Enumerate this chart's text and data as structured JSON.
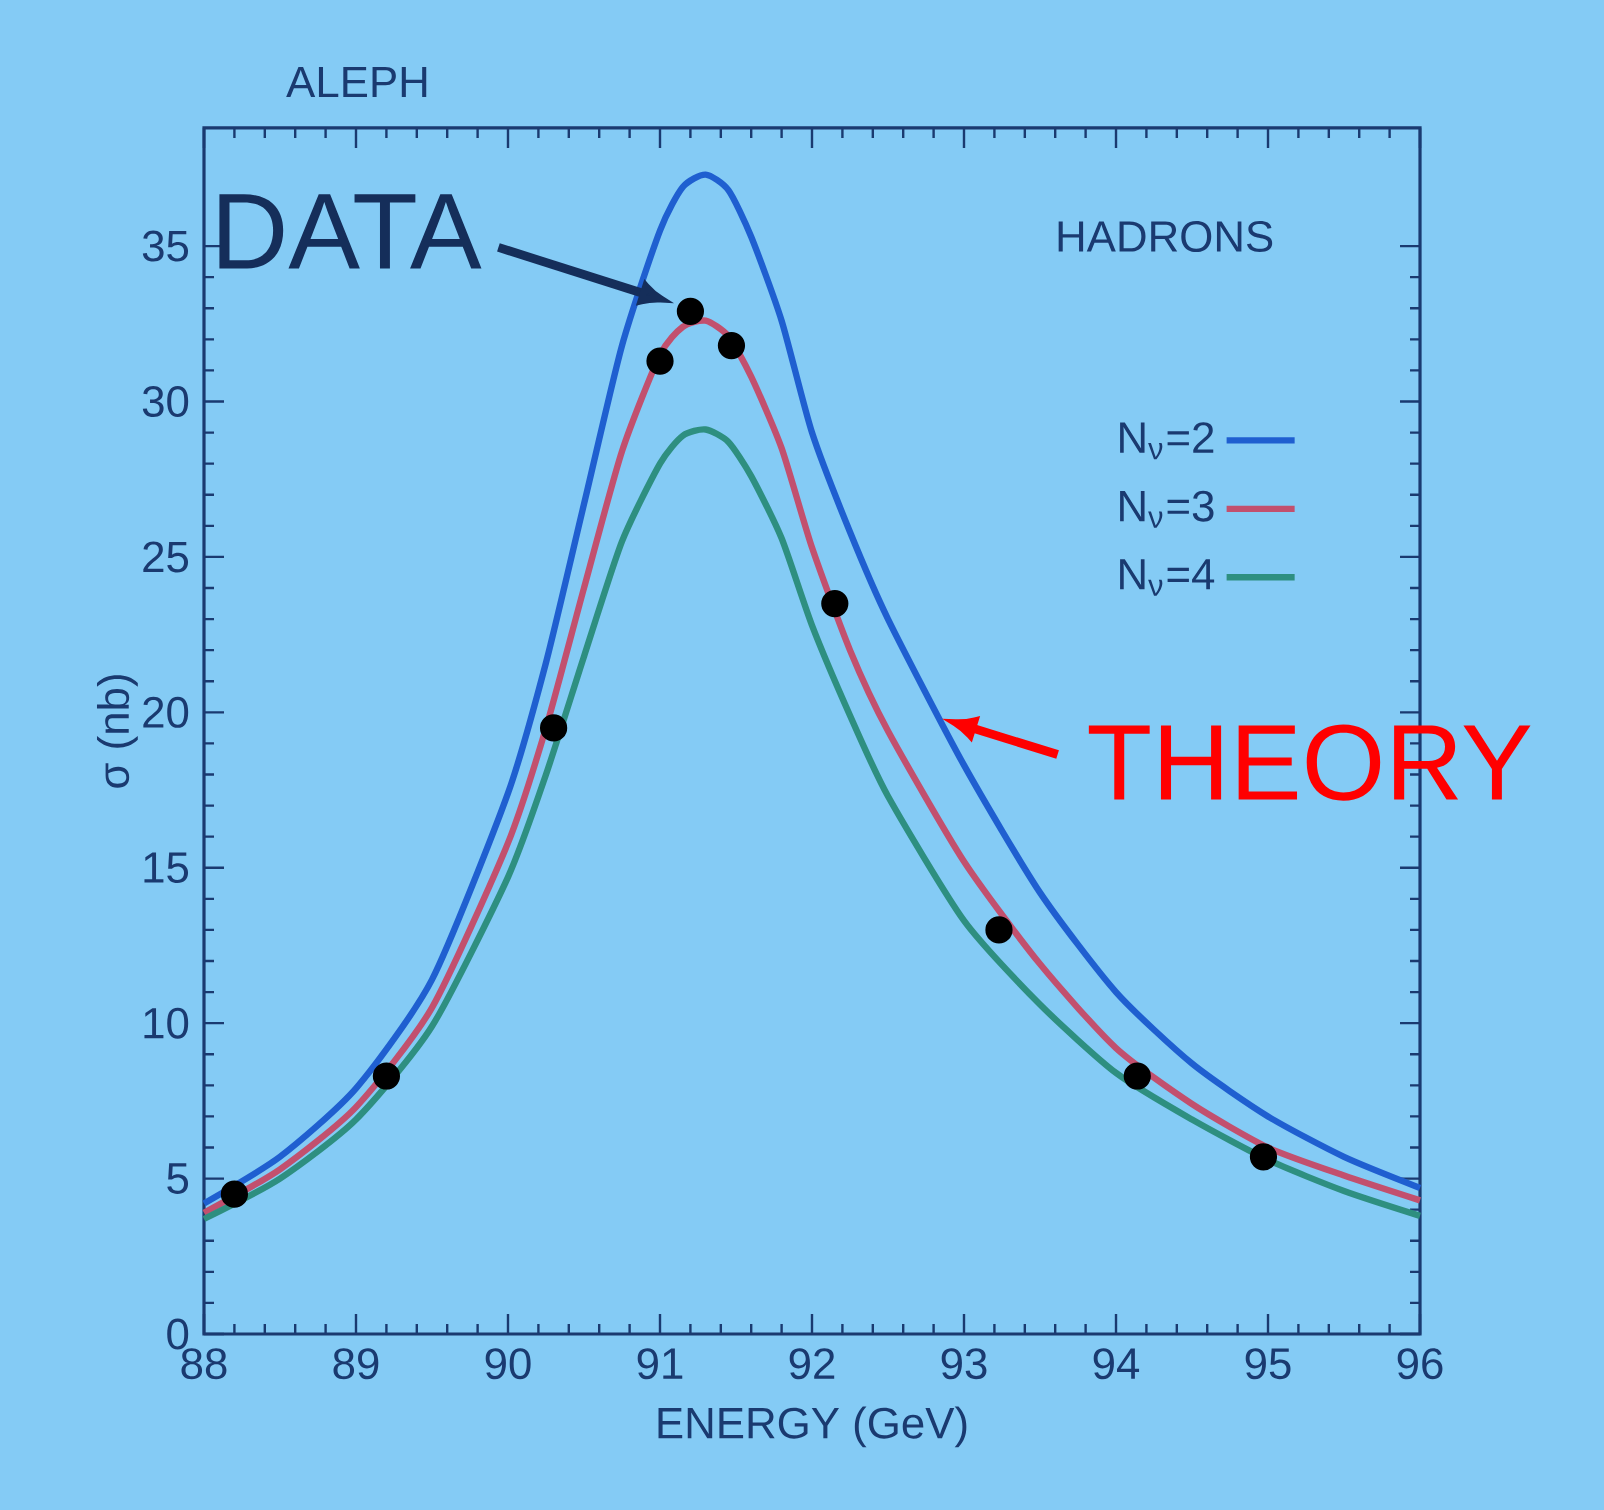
{
  "chart_data": {
    "type": "line",
    "title": "ALEPH",
    "xlabel": "ENERGY (GeV)",
    "ylabel": "σ (nb)",
    "annotations": [
      "HADRONS",
      {
        "text": "DATA",
        "x": 91.2,
        "y": 32.9
      },
      {
        "text": "THEORY",
        "x": 92.8,
        "y": 19.8
      }
    ],
    "xlim": [
      88,
      96
    ],
    "ylim": [
      0,
      38.8
    ],
    "xticks": [
      88,
      89,
      90,
      91,
      92,
      93,
      94,
      95,
      96
    ],
    "yticks": [
      0,
      5,
      10,
      15,
      20,
      25,
      30,
      35
    ],
    "grid": false,
    "legend": "top right",
    "series": [
      {
        "name": "N$_{ν}$=2",
        "color": "#1f5fd0",
        "marker": "none",
        "x": [
          88,
          88.5,
          89,
          89.5,
          90,
          90.25,
          90.5,
          90.75,
          91,
          91.15,
          91.3,
          91.45,
          91.6,
          91.8,
          92,
          92.25,
          92.5,
          93,
          93.5,
          94,
          94.5,
          95,
          95.5,
          96
        ],
        "values": [
          4.2,
          5.7,
          7.9,
          11.4,
          17.4,
          21.6,
          26.7,
          31.8,
          35.5,
          36.9,
          37.3,
          36.8,
          35.3,
          32.6,
          29.0,
          25.8,
          23.0,
          18.3,
          14.2,
          11.0,
          8.7,
          7.0,
          5.7,
          4.7
        ]
      },
      {
        "name": "N$_{ν}$=3",
        "color": "#c2506e",
        "marker": "none",
        "x": [
          88,
          88.5,
          89,
          89.5,
          90,
          90.25,
          90.5,
          90.75,
          91,
          91.15,
          91.3,
          91.45,
          91.6,
          91.8,
          92,
          92.25,
          92.5,
          93,
          93.5,
          94,
          94.5,
          95,
          95.5,
          96
        ],
        "values": [
          3.9,
          5.3,
          7.3,
          10.5,
          15.8,
          19.5,
          24.0,
          28.4,
          31.5,
          32.4,
          32.6,
          32.1,
          30.8,
          28.5,
          25.3,
          22.0,
          19.4,
          15.2,
          11.9,
          9.2,
          7.4,
          6.0,
          5.1,
          4.3
        ]
      },
      {
        "name": "N$_{ν}$=4",
        "color": "#2e8f80",
        "marker": "none",
        "x": [
          88,
          88.5,
          89,
          89.5,
          90,
          90.25,
          90.5,
          90.75,
          91,
          91.15,
          91.3,
          91.45,
          91.6,
          91.8,
          92,
          92.25,
          92.5,
          93,
          93.5,
          94,
          94.5,
          95,
          95.5,
          96
        ],
        "values": [
          3.7,
          5.0,
          6.9,
          9.9,
          14.7,
          18.0,
          21.8,
          25.5,
          28.0,
          28.9,
          29.1,
          28.7,
          27.6,
          25.6,
          22.8,
          19.9,
          17.3,
          13.3,
          10.6,
          8.4,
          6.9,
          5.6,
          4.6,
          3.8
        ]
      },
      {
        "type": "scatter",
        "color": "#000000",
        "marker": "circle",
        "x": [
          88.2,
          89.2,
          90.3,
          91.0,
          91.2,
          91.47,
          92.15,
          93.23,
          94.14,
          94.97
        ],
        "values": [
          4.5,
          8.3,
          19.5,
          31.3,
          32.9,
          31.8,
          23.5,
          13.0,
          8.3,
          5.7
        ]
      }
    ]
  }
}
